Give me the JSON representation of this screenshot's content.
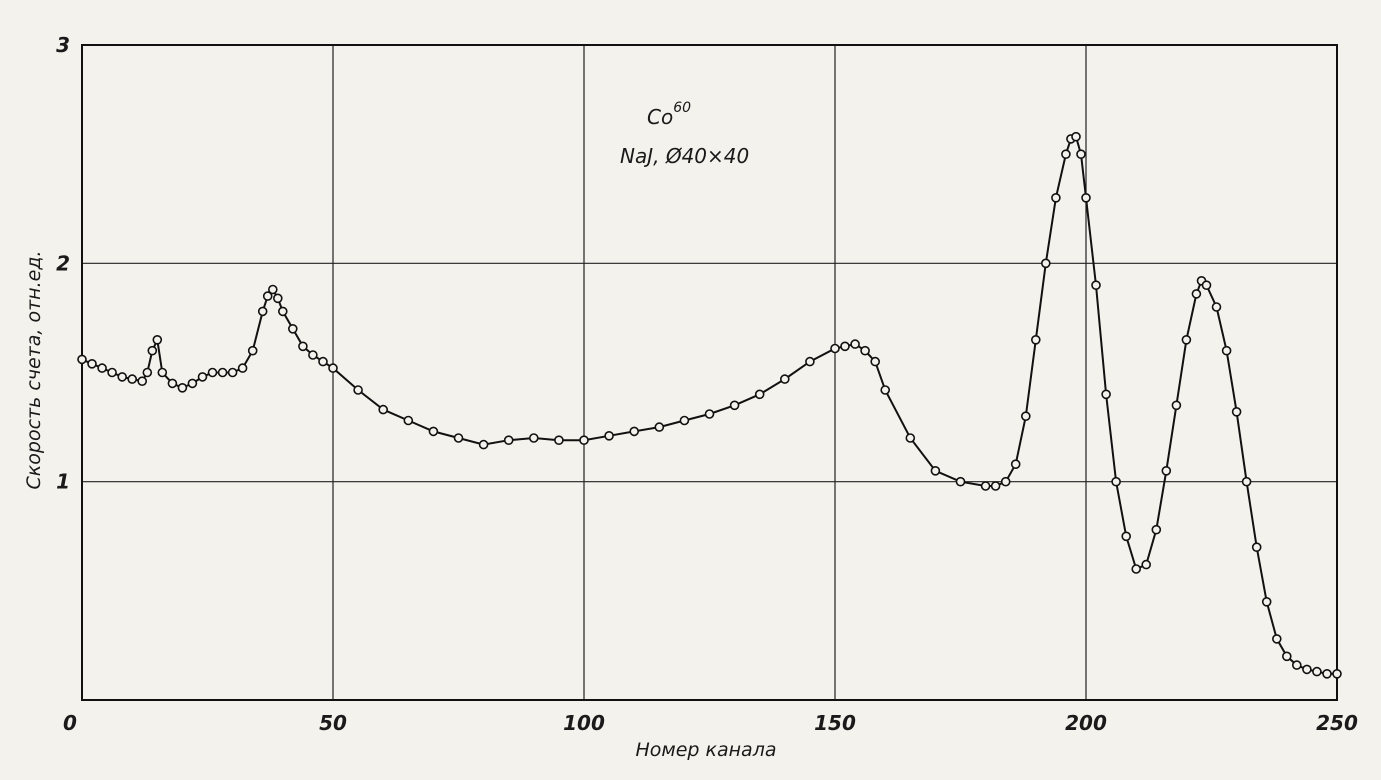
{
  "chart_data": {
    "type": "scatter",
    "title": "",
    "annotations": [
      "Co",
      "60",
      "NaJ, Ø40×40"
    ],
    "xlabel": "Номер канала",
    "ylabel": "Скорость счета, отн.ед.",
    "xlim": [
      0,
      250
    ],
    "ylim": [
      0,
      3
    ],
    "x_ticks": [
      0,
      50,
      100,
      150,
      200,
      250
    ],
    "y_ticks": [
      1,
      2,
      3
    ],
    "x_tick_labels": [
      "0",
      "50",
      "100",
      "150",
      "200",
      "250"
    ],
    "y_tick_labels": [
      "1",
      "2",
      "3"
    ],
    "grid": true,
    "legend": "none",
    "series": [
      {
        "x": [
          0,
          2,
          4,
          6,
          8,
          10,
          12,
          13,
          14,
          15,
          16,
          18,
          20,
          22,
          24,
          26,
          28,
          30,
          32,
          34,
          36,
          37,
          38,
          39,
          40,
          42,
          44,
          46,
          48,
          50,
          55,
          60,
          65,
          70,
          75,
          80,
          85,
          90,
          95,
          100,
          105,
          110,
          115,
          120,
          125,
          130,
          135,
          140,
          145,
          150,
          152,
          154,
          156,
          158,
          160,
          165,
          170,
          175,
          180,
          182,
          184,
          186,
          188,
          190,
          192,
          194,
          196,
          197,
          198,
          199,
          200,
          202,
          204,
          206,
          208,
          210,
          212,
          214,
          216,
          218,
          220,
          222,
          223,
          224,
          226,
          228,
          230,
          232,
          234,
          236,
          238,
          240,
          242,
          244,
          246,
          248,
          250
        ],
        "y": [
          1.56,
          1.54,
          1.52,
          1.5,
          1.48,
          1.47,
          1.46,
          1.5,
          1.6,
          1.65,
          1.5,
          1.45,
          1.43,
          1.45,
          1.48,
          1.5,
          1.5,
          1.5,
          1.52,
          1.6,
          1.78,
          1.85,
          1.88,
          1.84,
          1.78,
          1.7,
          1.62,
          1.58,
          1.55,
          1.52,
          1.42,
          1.33,
          1.28,
          1.23,
          1.2,
          1.17,
          1.19,
          1.2,
          1.19,
          1.19,
          1.21,
          1.23,
          1.25,
          1.28,
          1.31,
          1.35,
          1.4,
          1.47,
          1.55,
          1.61,
          1.62,
          1.63,
          1.6,
          1.55,
          1.42,
          1.2,
          1.05,
          1.0,
          0.98,
          0.98,
          1.0,
          1.08,
          1.3,
          1.65,
          2.0,
          2.3,
          2.5,
          2.57,
          2.58,
          2.5,
          2.3,
          1.9,
          1.4,
          1.0,
          0.75,
          0.6,
          0.62,
          0.78,
          1.05,
          1.35,
          1.65,
          1.86,
          1.92,
          1.9,
          1.8,
          1.6,
          1.32,
          1.0,
          0.7,
          0.45,
          0.28,
          0.2,
          0.16,
          0.14,
          0.13,
          0.12,
          0.12
        ]
      }
    ]
  }
}
